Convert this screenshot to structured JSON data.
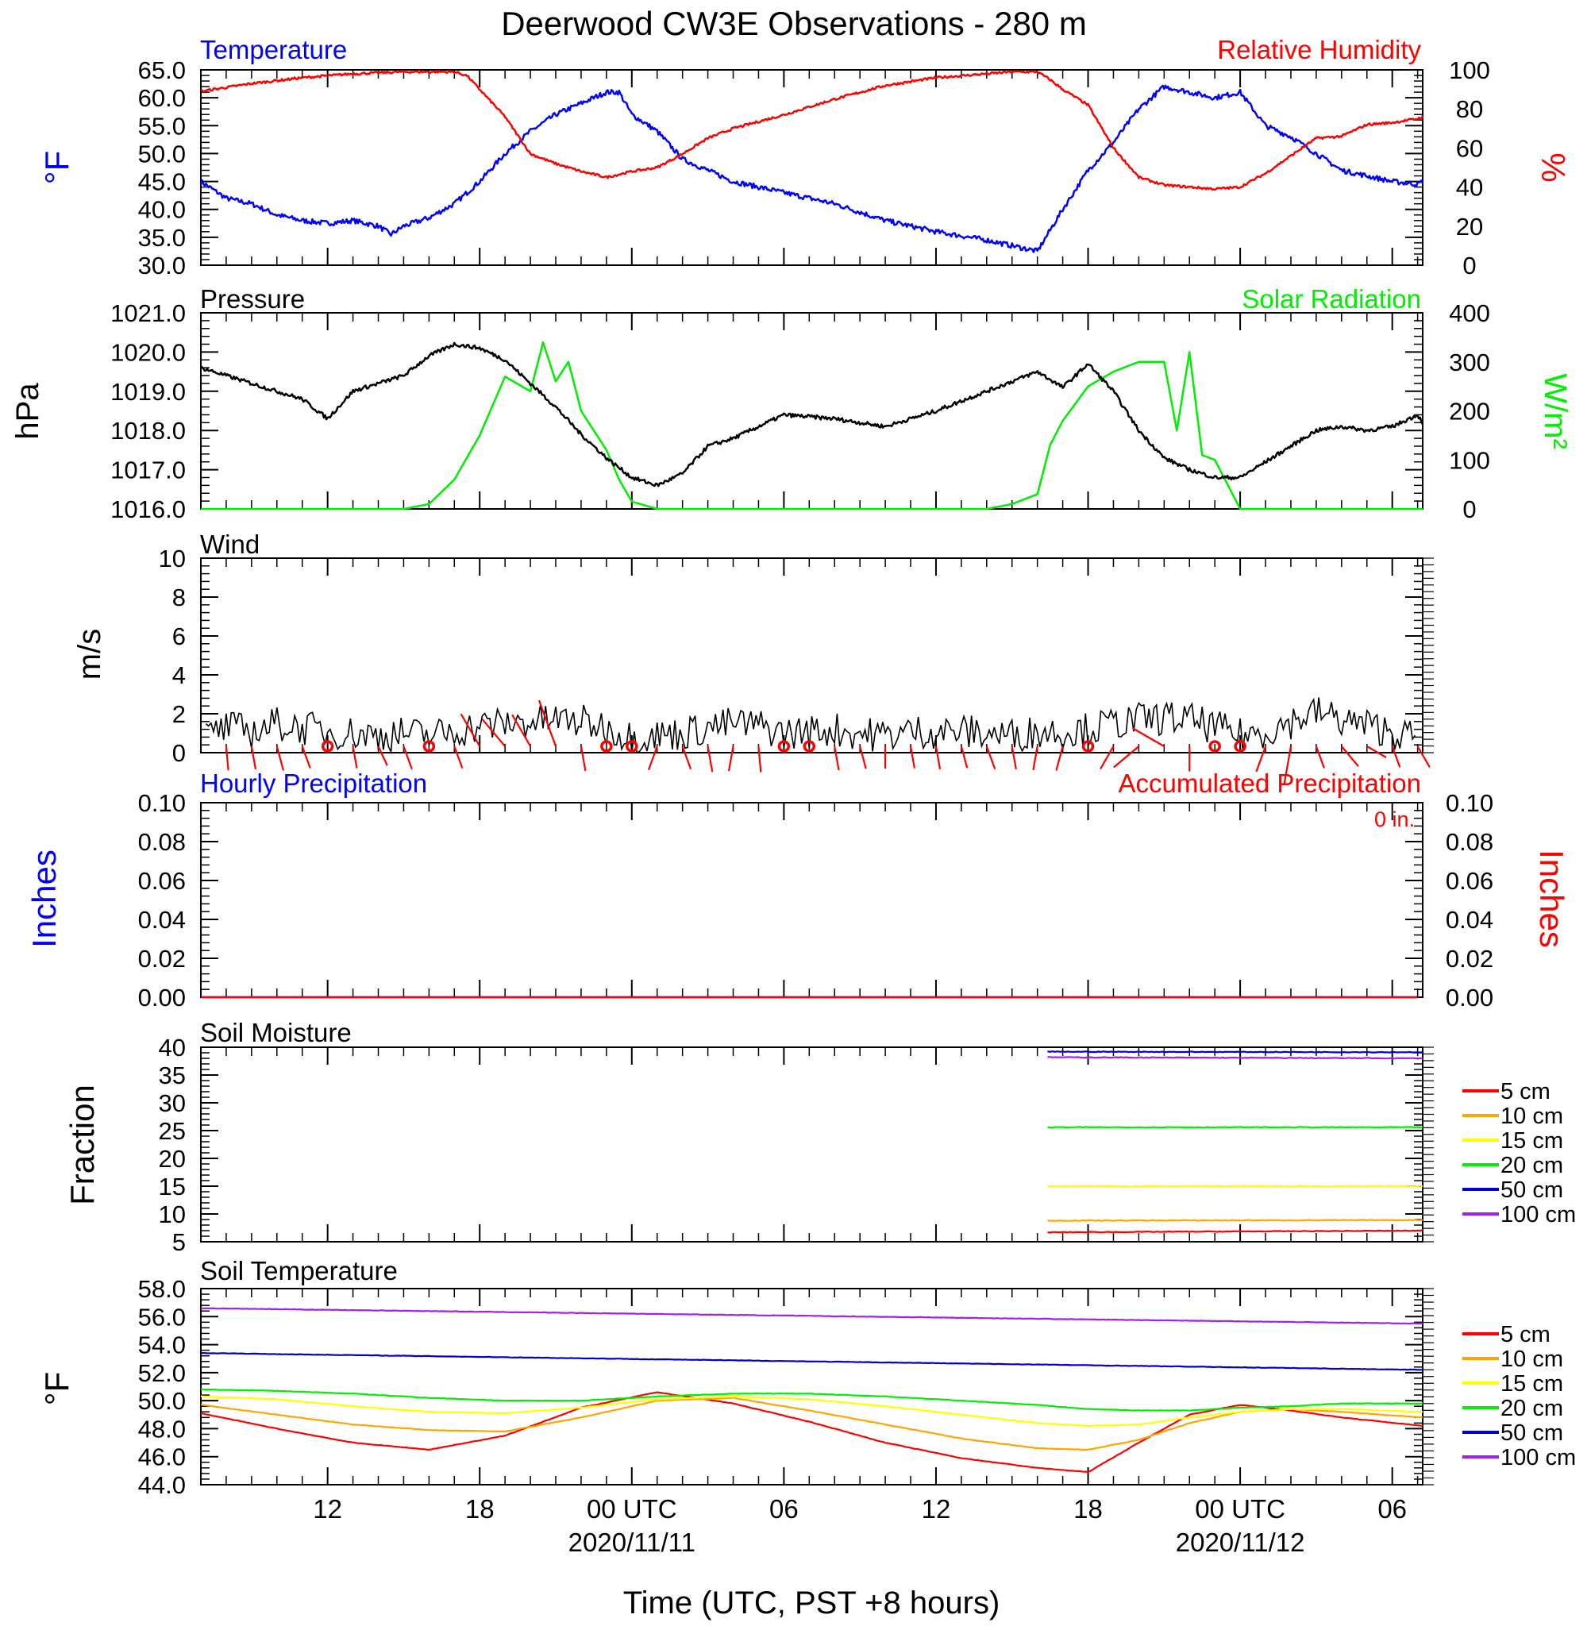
{
  "title": "Deerwood CW3E Observations - 280 m",
  "x_axis": {
    "label": "Time (UTC, PST +8 hours)",
    "ticks": [
      {
        "hours": 12,
        "label": "12",
        "date": ""
      },
      {
        "hours": 18,
        "label": "18",
        "date": ""
      },
      {
        "hours": 24,
        "label": "00 UTC",
        "date": "2020/11/11"
      },
      {
        "hours": 30,
        "label": "06",
        "date": ""
      },
      {
        "hours": 36,
        "label": "12",
        "date": ""
      },
      {
        "hours": 42,
        "label": "18",
        "date": ""
      },
      {
        "hours": 48,
        "label": "00 UTC",
        "date": "2020/11/12"
      },
      {
        "hours": 54,
        "label": "06",
        "date": ""
      }
    ]
  },
  "panels": {
    "temp_rh": {
      "left_title": "Temperature",
      "right_title": "Relative Humidity",
      "left_unit": "°F",
      "right_unit": "%",
      "left_ticks": [
        "65.0",
        "60.0",
        "55.0",
        "50.0",
        "45.0",
        "40.0",
        "35.0",
        "30.0"
      ],
      "right_ticks": [
        "100",
        "80",
        "60",
        "40",
        "20",
        "0"
      ]
    },
    "pressure": {
      "left_title": "Pressure",
      "right_title": "Solar Radiation",
      "left_unit": "hPa",
      "right_unit": "W/m²",
      "left_ticks": [
        "1021.0",
        "1020.0",
        "1019.0",
        "1018.0",
        "1017.0",
        "1016.0"
      ],
      "right_ticks": [
        "400",
        "300",
        "200",
        "100",
        "0"
      ]
    },
    "wind": {
      "left_title": "Wind",
      "left_unit": "m/s",
      "left_ticks": [
        "10",
        "8",
        "6",
        "4",
        "2",
        "0"
      ]
    },
    "precip": {
      "left_title": "Hourly Precipitation",
      "right_title": "Accumulated Precipitation",
      "accum_label": "0 in.",
      "left_unit": "Inches",
      "right_unit": "Inches",
      "left_ticks": [
        "0.10",
        "0.08",
        "0.06",
        "0.04",
        "0.02",
        "0.00"
      ],
      "right_ticks": [
        "0.10",
        "0.08",
        "0.06",
        "0.04",
        "0.02",
        "0.00"
      ]
    },
    "soil_moisture": {
      "left_title": "Soil Moisture",
      "left_unit": "Fraction",
      "left_ticks": [
        "40",
        "35",
        "30",
        "25",
        "20",
        "15",
        "10",
        "5"
      ],
      "legend": [
        "5 cm",
        "10 cm",
        "15 cm",
        "20 cm",
        "50 cm",
        "100 cm"
      ]
    },
    "soil_temp": {
      "left_title": "Soil Temperature",
      "left_unit": "°F",
      "left_ticks": [
        "58.0",
        "56.0",
        "54.0",
        "52.0",
        "50.0",
        "48.0",
        "46.0",
        "44.0"
      ],
      "legend": [
        "5 cm",
        "10 cm",
        "15 cm",
        "20 cm",
        "50 cm",
        "100 cm"
      ]
    }
  },
  "colors": {
    "temperature": "#0000ff",
    "humidity": "#ff0000",
    "pressure": "#000000",
    "solar": "#00ee00",
    "wind_speed": "#000000",
    "wind_barb": "#ff0000",
    "depth": [
      "#ff0000",
      "#ffa500",
      "#ffff00",
      "#00ee00",
      "#0000cd",
      "#a020f0"
    ]
  },
  "chart_data": [
    {
      "type": "line",
      "panel": "temp_rh",
      "x_units": "hours since 2020/11/10 00 UTC",
      "xlim": [
        7,
        55.2
      ],
      "series": [
        {
          "name": "Temperature",
          "axis": "left",
          "ylim": [
            30,
            65
          ],
          "x": [
            7,
            8,
            9,
            10,
            11,
            12,
            13,
            14,
            14.5,
            15,
            16,
            17,
            18,
            19,
            20,
            21,
            22,
            23,
            23.5,
            24,
            25,
            26,
            27,
            28,
            30,
            32,
            34,
            36,
            38,
            39,
            40,
            41,
            42,
            43,
            44,
            45,
            46,
            47,
            48,
            49,
            50,
            51,
            52,
            53,
            54,
            55,
            55.2
          ],
          "y": [
            45,
            42,
            41,
            39,
            38,
            37.5,
            38,
            37,
            35.5,
            37,
            38.5,
            41,
            45,
            50,
            54,
            57,
            59,
            61,
            61,
            57,
            54,
            49,
            47,
            45,
            43,
            41,
            38,
            36,
            34.5,
            33.5,
            32.5,
            40,
            47,
            52,
            58,
            62,
            61,
            60,
            61,
            55,
            53,
            50,
            47,
            46,
            45,
            44.5,
            45
          ]
        },
        {
          "name": "Relative Humidity",
          "axis": "right",
          "ylim": [
            0,
            100
          ],
          "x": [
            7,
            9,
            11,
            13,
            15,
            16,
            17,
            17.5,
            18,
            19,
            20,
            21,
            22,
            23,
            24,
            25,
            26,
            27,
            28,
            30,
            32,
            34,
            36,
            38,
            39,
            40,
            40.5,
            41,
            42,
            43,
            44,
            45,
            46,
            47,
            48,
            49,
            50,
            51,
            52,
            53,
            54,
            55,
            55.2
          ],
          "y": [
            89,
            93,
            96,
            98,
            99,
            99,
            99,
            97,
            90,
            76,
            57,
            52,
            48,
            45,
            48,
            50,
            57,
            65,
            70,
            77,
            85,
            92,
            96,
            98,
            99,
            99,
            95,
            90,
            82,
            60,
            45,
            41,
            40,
            39,
            40,
            47,
            56,
            65,
            66,
            72,
            73,
            75,
            76
          ]
        }
      ]
    },
    {
      "type": "line",
      "panel": "pressure",
      "x_units": "hours since 2020/11/10 00 UTC",
      "xlim": [
        7,
        55.2
      ],
      "series": [
        {
          "name": "Pressure",
          "axis": "left",
          "ylim": [
            1016,
            1021
          ],
          "x": [
            7,
            9,
            11,
            12,
            13,
            15,
            16,
            17,
            18,
            19,
            20,
            21,
            22,
            23,
            24,
            25,
            26,
            27,
            28,
            30,
            32,
            34,
            36,
            38,
            40,
            41,
            42,
            43,
            44,
            45,
            46,
            47,
            48,
            49,
            50,
            51,
            52,
            53,
            54,
            55,
            55.2
          ],
          "y": [
            1019.6,
            1019.2,
            1018.8,
            1018.3,
            1019,
            1019.4,
            1019.9,
            1020.2,
            1020.1,
            1019.8,
            1019.2,
            1018.6,
            1017.9,
            1017.3,
            1016.8,
            1016.6,
            1016.9,
            1017.6,
            1017.8,
            1018.4,
            1018.3,
            1018.1,
            1018.5,
            1019,
            1019.5,
            1019.1,
            1019.7,
            1019.0,
            1018.0,
            1017.3,
            1017.0,
            1016.8,
            1016.8,
            1017.2,
            1017.6,
            1018.0,
            1018.1,
            1018.0,
            1018.1,
            1018.4,
            1018.2
          ]
        },
        {
          "name": "Solar Radiation",
          "axis": "right",
          "ylim": [
            0,
            400
          ],
          "x": [
            7,
            15,
            16,
            17,
            18,
            19,
            20,
            20.5,
            21,
            21.5,
            22,
            23,
            23.5,
            24,
            25,
            38,
            39,
            40,
            40.5,
            41,
            42,
            43,
            44,
            45,
            45.5,
            46,
            46.5,
            47,
            47.5,
            48,
            49,
            55.2
          ],
          "y": [
            0,
            0,
            10,
            60,
            150,
            270,
            240,
            340,
            260,
            300,
            200,
            120,
            60,
            15,
            0,
            0,
            10,
            30,
            130,
            180,
            250,
            280,
            300,
            300,
            160,
            320,
            110,
            100,
            50,
            0,
            0,
            0
          ]
        }
      ]
    },
    {
      "type": "line",
      "panel": "wind",
      "x_units": "hours since 2020/11/10 00 UTC",
      "xlim": [
        7,
        55.2
      ],
      "ylim": [
        0,
        10
      ],
      "series": [
        {
          "name": "Wind",
          "x": [
            7,
            8,
            9,
            10,
            11,
            12,
            13,
            14,
            15,
            16,
            17,
            18,
            19,
            20,
            21,
            22,
            23,
            24,
            25,
            26,
            27,
            28,
            29,
            30,
            31,
            32,
            33,
            34,
            35,
            36,
            37,
            38,
            39,
            40,
            41,
            42,
            43,
            44,
            45,
            46,
            47,
            48,
            49,
            50,
            51,
            52,
            53,
            54,
            55
          ],
          "y": [
            0.6,
            1.2,
            1.0,
            1.4,
            1.2,
            1.0,
            0.9,
            0.8,
            0.9,
            0.8,
            1.0,
            1.3,
            1.4,
            1.5,
            1.6,
            1.5,
            1.2,
            0.7,
            0.8,
            0.9,
            1.2,
            1.4,
            1.3,
            0.9,
            1.0,
            1.1,
            0.9,
            0.8,
            1.0,
            1.0,
            1.0,
            0.9,
            0.8,
            1.0,
            1.0,
            1.1,
            1.4,
            1.6,
            1.7,
            1.6,
            1.2,
            0.8,
            1.0,
            1.5,
            2.0,
            1.6,
            1.3,
            1.0,
            0.6
          ]
        }
      ]
    },
    {
      "type": "line",
      "panel": "precip",
      "xlim": [
        7,
        55.2
      ],
      "ylim": [
        0,
        0.1
      ],
      "series": [
        {
          "name": "Hourly Precipitation",
          "x": [
            7,
            55.2
          ],
          "y": [
            0,
            0
          ]
        },
        {
          "name": "Accumulated Precipitation",
          "x": [
            7,
            55.2
          ],
          "y": [
            0,
            0
          ]
        }
      ]
    },
    {
      "type": "line",
      "panel": "soil_moisture",
      "xlim": [
        7,
        55.2
      ],
      "ylim": [
        5,
        40
      ],
      "series": [
        {
          "name": "5 cm",
          "x": [
            40.4,
            55.2
          ],
          "y": [
            6.7,
            7.0
          ]
        },
        {
          "name": "10 cm",
          "x": [
            40.4,
            55.2
          ],
          "y": [
            8.8,
            8.9
          ]
        },
        {
          "name": "15 cm",
          "x": [
            40.4,
            55.2
          ],
          "y": [
            15.0,
            15.0
          ]
        },
        {
          "name": "20 cm",
          "x": [
            40.4,
            55.2
          ],
          "y": [
            25.6,
            25.6
          ]
        },
        {
          "name": "50 cm",
          "x": [
            40.4,
            55.2
          ],
          "y": [
            39.2,
            39.1
          ]
        },
        {
          "name": "100 cm",
          "x": [
            40.4,
            55.2
          ],
          "y": [
            38.2,
            38.0
          ]
        }
      ]
    },
    {
      "type": "line",
      "panel": "soil_temp",
      "xlim": [
        7,
        55.2
      ],
      "ylim": [
        44,
        58
      ],
      "series": [
        {
          "name": "5 cm",
          "x": [
            7,
            10,
            13,
            16,
            19,
            22,
            25,
            28,
            31,
            34,
            37,
            40,
            42,
            44,
            46,
            48,
            50,
            52,
            55.2
          ],
          "y": [
            49.1,
            48.0,
            47.0,
            46.5,
            47.5,
            49.5,
            50.6,
            49.8,
            48.5,
            47.0,
            45.9,
            45.2,
            44.9,
            47.0,
            49.0,
            49.7,
            49.3,
            48.8,
            48.2
          ]
        },
        {
          "name": "10 cm",
          "x": [
            7,
            10,
            13,
            16,
            19,
            22,
            25,
            28,
            31,
            34,
            37,
            40,
            42,
            44,
            46,
            48,
            50,
            52,
            55.2
          ],
          "y": [
            49.7,
            49.0,
            48.3,
            47.9,
            47.8,
            48.8,
            50.0,
            50.2,
            49.3,
            48.3,
            47.3,
            46.6,
            46.5,
            47.2,
            48.4,
            49.2,
            49.4,
            49.2,
            48.8
          ]
        },
        {
          "name": "15 cm",
          "x": [
            7,
            10,
            13,
            16,
            19,
            22,
            25,
            28,
            31,
            34,
            37,
            40,
            42,
            44,
            46,
            48,
            50,
            52,
            55.2
          ],
          "y": [
            50.3,
            50.1,
            49.6,
            49.2,
            49.1,
            49.5,
            50.1,
            50.3,
            50.1,
            49.6,
            49.0,
            48.4,
            48.2,
            48.3,
            48.8,
            49.2,
            49.4,
            49.4,
            49.2
          ]
        },
        {
          "name": "20 cm",
          "x": [
            7,
            10,
            13,
            16,
            19,
            22,
            25,
            28,
            31,
            34,
            37,
            40,
            42,
            44,
            46,
            48,
            50,
            52,
            55.2
          ],
          "y": [
            50.8,
            50.7,
            50.5,
            50.2,
            50.0,
            50.0,
            50.3,
            50.5,
            50.5,
            50.3,
            50.0,
            49.7,
            49.4,
            49.3,
            49.3,
            49.5,
            49.6,
            49.8,
            49.8
          ]
        },
        {
          "name": "50 cm",
          "x": [
            7,
            55.2
          ],
          "y": [
            53.4,
            52.2
          ]
        },
        {
          "name": "100 cm",
          "x": [
            7,
            55.2
          ],
          "y": [
            56.6,
            55.5
          ]
        }
      ]
    }
  ],
  "wind_barbs": {
    "x": [
      8,
      9,
      10,
      11,
      12,
      13,
      14,
      15,
      16,
      17,
      18,
      19,
      20,
      21,
      22,
      23,
      24,
      25,
      26,
      27,
      28,
      29,
      30,
      31,
      32,
      33,
      34,
      35,
      36,
      37,
      38,
      39,
      40,
      41,
      42,
      43,
      44,
      45,
      46,
      47,
      48,
      49,
      50,
      51,
      52,
      53,
      54,
      55
    ],
    "calm": [
      false,
      false,
      false,
      false,
      true,
      false,
      false,
      false,
      true,
      false,
      false,
      false,
      false,
      false,
      false,
      true,
      true,
      false,
      false,
      false,
      false,
      false,
      true,
      true,
      false,
      false,
      false,
      false,
      false,
      false,
      false,
      false,
      false,
      false,
      true,
      false,
      false,
      false,
      false,
      true,
      true,
      false,
      false,
      false,
      false,
      false,
      false,
      false
    ],
    "speed": [
      1.2,
      1.1,
      1.3,
      1.1,
      0,
      1.0,
      0.9,
      1.2,
      0,
      1.1,
      2.6,
      2.4,
      2.5,
      3.8,
      1.3,
      0,
      0,
      1.3,
      1.2,
      1.4,
      1.3,
      1.4,
      0,
      0,
      1.2,
      1.1,
      1.0,
      1.0,
      1.1,
      1.0,
      1.2,
      1.1,
      1.2,
      1.3,
      0,
      1.4,
      2.1,
      2.5,
      1.3,
      0,
      0,
      1.5,
      2.8,
      1.1,
      1.4,
      1.0,
      1.0,
      1.2
    ],
    "dir": [
      175,
      170,
      165,
      160,
      0,
      170,
      155,
      160,
      0,
      160,
      330,
      320,
      330,
      340,
      170,
      0,
      0,
      200,
      160,
      170,
      190,
      175,
      0,
      0,
      170,
      165,
      180,
      170,
      170,
      165,
      160,
      170,
      190,
      195,
      0,
      210,
      230,
      300,
      180,
      0,
      0,
      200,
      190,
      160,
      140,
      120,
      160,
      150
    ]
  }
}
